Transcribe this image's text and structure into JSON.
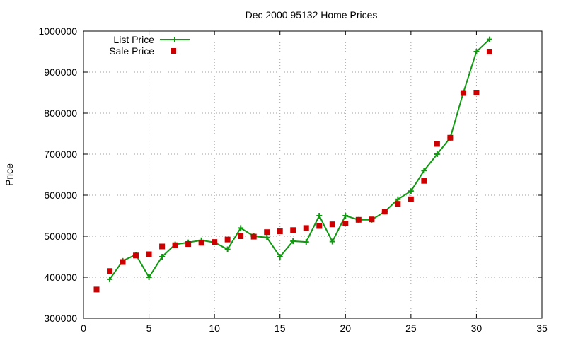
{
  "chart_data": {
    "type": "line",
    "title": "Dec 2000 95132 Home Prices",
    "xlabel": "",
    "ylabel": "Price",
    "xlim": [
      0,
      35
    ],
    "ylim": [
      300000,
      1000000
    ],
    "x_ticks": [
      0,
      5,
      10,
      15,
      20,
      25,
      30,
      35
    ],
    "y_ticks": [
      300000,
      400000,
      500000,
      600000,
      700000,
      800000,
      900000,
      1000000
    ],
    "grid": true,
    "legend_position": "top-left",
    "x": [
      1,
      2,
      3,
      4,
      5,
      6,
      7,
      8,
      9,
      10,
      11,
      12,
      13,
      14,
      15,
      16,
      17,
      18,
      19,
      20,
      21,
      22,
      23,
      24,
      25,
      26,
      27,
      28,
      29,
      30,
      31
    ],
    "series": [
      {
        "name": "List Price",
        "style": "line-points",
        "marker": "plus",
        "color": "#109910",
        "x": [
          2,
          3,
          4,
          5,
          6,
          7,
          8,
          9,
          10,
          11,
          12,
          13,
          14,
          15,
          16,
          17,
          18,
          19,
          20,
          21,
          22,
          23,
          24,
          25,
          26,
          27,
          28,
          29,
          30,
          31
        ],
        "values": [
          395000,
          440000,
          455000,
          400000,
          450000,
          480000,
          485000,
          490000,
          485000,
          468000,
          520000,
          500000,
          497000,
          450000,
          488000,
          486000,
          550000,
          487000,
          550000,
          540000,
          540000,
          560000,
          590000,
          610000,
          660000,
          700000,
          740000,
          850000,
          950000,
          980000
        ]
      },
      {
        "name": "Sale Price",
        "style": "points",
        "marker": "square",
        "color": "#cc0000",
        "x": [
          1,
          2,
          3,
          4,
          5,
          6,
          7,
          8,
          9,
          10,
          11,
          12,
          13,
          14,
          15,
          16,
          17,
          18,
          19,
          20,
          21,
          22,
          23,
          24,
          25,
          26,
          27,
          28,
          29,
          30,
          31
        ],
        "values": [
          370000,
          415000,
          437000,
          453000,
          456000,
          475000,
          478000,
          481000,
          484000,
          486000,
          492000,
          500000,
          499000,
          510000,
          512000,
          515000,
          520000,
          525000,
          529000,
          531000,
          540000,
          541000,
          560000,
          579000,
          590000,
          635000,
          725000,
          740000,
          849000,
          850000,
          950000
        ]
      }
    ]
  }
}
